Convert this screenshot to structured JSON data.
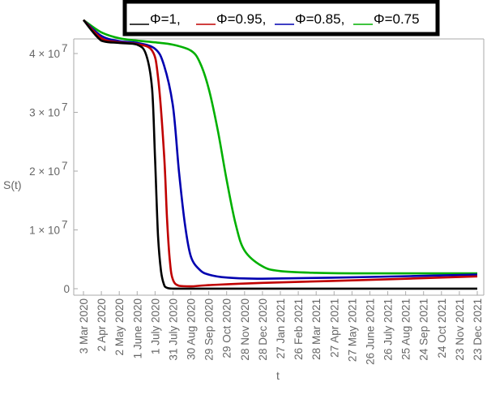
{
  "chart_data": {
    "type": "line",
    "xlabel": "t",
    "ylabel": "S(t)",
    "ylim": [
      0,
      47000000
    ],
    "y_ticks": [
      {
        "value": 0,
        "mantissa": "0",
        "exp": ""
      },
      {
        "value": 10000000,
        "mantissa": "1 × 10",
        "exp": "7"
      },
      {
        "value": 20000000,
        "mantissa": "2 × 10",
        "exp": "7"
      },
      {
        "value": 30000000,
        "mantissa": "3 × 10",
        "exp": "7"
      },
      {
        "value": 40000000,
        "mantissa": "4 × 10",
        "exp": "7"
      }
    ],
    "x_ticks": [
      "3 Mar 2020",
      "2 Apr 2020",
      "2 May 2020",
      "1 June 2020",
      "1 July 2020",
      "31 July 2020",
      "30 Aug 2020",
      "29 Sep 2020",
      "29 Oct 2020",
      "28 Nov 2020",
      "28 Dec 2020",
      "27 Jan 2021",
      "26 Feb 2021",
      "28 Mar 2021",
      "27 Apr 2021",
      "27 May 2021",
      "26 June 2021",
      "26 July 2021",
      "25 Aug 2021",
      "24 Sep 2021",
      "24 Oct 2021",
      "23 Nov 2021",
      "23 Dec 2021"
    ],
    "legend_position": "top",
    "series": [
      {
        "name": "Φ=1",
        "color": "#000000",
        "x": [
          "3 Mar 2020",
          "2 Apr 2020",
          "2 May 2020",
          "1 June 2020",
          "16 June 2020",
          "26 June 2020",
          "1 July 2020",
          "6 July 2020",
          "11 July 2020",
          "16 July 2020",
          "21 July 2020",
          "31 July 2020",
          "30 Aug 2020",
          "28 Dec 2020",
          "26 June 2021",
          "23 Dec 2021"
        ],
        "y": [
          45700000,
          42200000,
          41800000,
          41500000,
          39800000,
          34000000,
          22000000,
          9000000,
          3000000,
          700000,
          150000,
          20000,
          10000,
          10000,
          10000,
          10000
        ]
      },
      {
        "name": "Φ=0.95",
        "color": "#c00000",
        "x": [
          "3 Mar 2020",
          "2 Apr 2020",
          "2 May 2020",
          "1 June 2020",
          "26 June 2020",
          "6 July 2020",
          "16 July 2020",
          "21 July 2020",
          "26 July 2020",
          "31 July 2020",
          "10 Aug 2020",
          "30 Aug 2020",
          "29 Sep 2020",
          "28 Dec 2020",
          "26 June 2021",
          "23 Dec 2021"
        ],
        "y": [
          45700000,
          42600000,
          41900000,
          41600000,
          40500000,
          36000000,
          23000000,
          12000000,
          4500000,
          1500000,
          500000,
          400000,
          600000,
          1000000,
          1500000,
          2100000
        ]
      },
      {
        "name": "Φ=0.85",
        "color": "#0000b0",
        "x": [
          "3 Mar 2020",
          "2 Apr 2020",
          "2 May 2020",
          "1 June 2020",
          "1 July 2020",
          "16 July 2020",
          "31 July 2020",
          "10 Aug 2020",
          "20 Aug 2020",
          "30 Aug 2020",
          "14 Sep 2020",
          "29 Sep 2020",
          "29 Oct 2020",
          "28 Dec 2020",
          "26 June 2021",
          "23 Dec 2021"
        ],
        "y": [
          45700000,
          43000000,
          42100000,
          41800000,
          40800000,
          38000000,
          31000000,
          20000000,
          11000000,
          5500000,
          3200000,
          2400000,
          1900000,
          1700000,
          2000000,
          2400000
        ]
      },
      {
        "name": "Φ=0.75",
        "color": "#00b000",
        "x": [
          "3 Mar 2020",
          "2 Apr 2020",
          "2 May 2020",
          "1 June 2020",
          "1 July 2020",
          "31 July 2020",
          "30 Aug 2020",
          "14 Sep 2020",
          "29 Sep 2020",
          "14 Oct 2020",
          "29 Oct 2020",
          "13 Nov 2020",
          "28 Nov 2020",
          "28 Dec 2020",
          "27 Jan 2021",
          "28 Mar 2021",
          "26 June 2021",
          "23 Dec 2021"
        ],
        "y": [
          45700000,
          43600000,
          42600000,
          42200000,
          41900000,
          41500000,
          40500000,
          38500000,
          34000000,
          27000000,
          18500000,
          11000000,
          6500000,
          3800000,
          3000000,
          2700000,
          2600000,
          2600000
        ]
      }
    ]
  }
}
